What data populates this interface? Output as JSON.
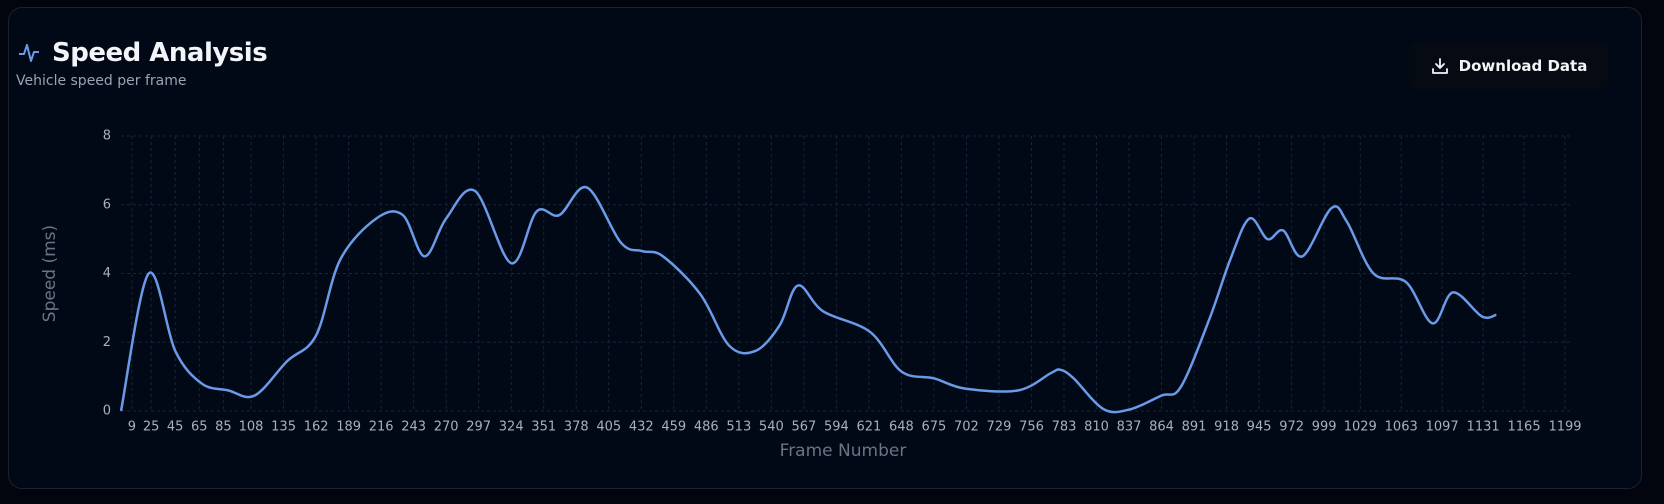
{
  "download_button": "Download Data",
  "chart_data": {
    "type": "line",
    "title": "Speed Analysis",
    "subtitle": "Vehicle speed per frame",
    "x_label": "Frame Number",
    "y_label": "Speed (ms)",
    "color": "#6a9be8",
    "grid": true,
    "x": [
      0,
      23,
      45,
      67,
      89,
      111,
      138,
      162,
      182,
      212,
      234,
      252,
      270,
      294,
      324,
      345,
      364,
      387,
      415,
      433,
      450,
      481,
      505,
      527,
      547,
      562,
      583,
      622,
      648,
      675,
      701,
      745,
      772,
      780,
      791,
      816,
      838,
      864,
      880,
      904,
      921,
      937,
      952,
      965,
      981,
      1005,
      1018,
      1040,
      1067,
      1089,
      1106,
      1130,
      1142
    ],
    "values": [
      0,
      4.0,
      1.75,
      0.8,
      0.6,
      0.45,
      1.45,
      2.2,
      4.4,
      5.6,
      5.7,
      4.5,
      5.6,
      6.4,
      4.3,
      5.8,
      5.7,
      6.5,
      4.9,
      4.65,
      4.5,
      3.4,
      1.9,
      1.75,
      2.5,
      3.65,
      2.9,
      2.3,
      1.15,
      0.95,
      0.65,
      0.6,
      1.1,
      1.2,
      0.95,
      0.05,
      0.05,
      0.45,
      0.7,
      2.7,
      4.4,
      5.6,
      5.0,
      5.25,
      4.5,
      5.9,
      5.5,
      4.0,
      3.75,
      2.55,
      3.45,
      2.75,
      2.8
    ],
    "xlim": [
      0,
      1199
    ],
    "xticks": [
      9,
      25,
      45,
      65,
      85,
      108,
      135,
      162,
      189,
      216,
      243,
      270,
      297,
      324,
      351,
      378,
      405,
      432,
      459,
      486,
      513,
      540,
      567,
      594,
      621,
      648,
      675,
      702,
      729,
      756,
      783,
      810,
      837,
      864,
      891,
      918,
      945,
      972,
      999,
      1029,
      1063,
      1097,
      1131,
      1165,
      1199
    ],
    "ylim": [
      0,
      8
    ],
    "yticks": [
      0,
      2,
      4,
      6,
      8
    ]
  }
}
